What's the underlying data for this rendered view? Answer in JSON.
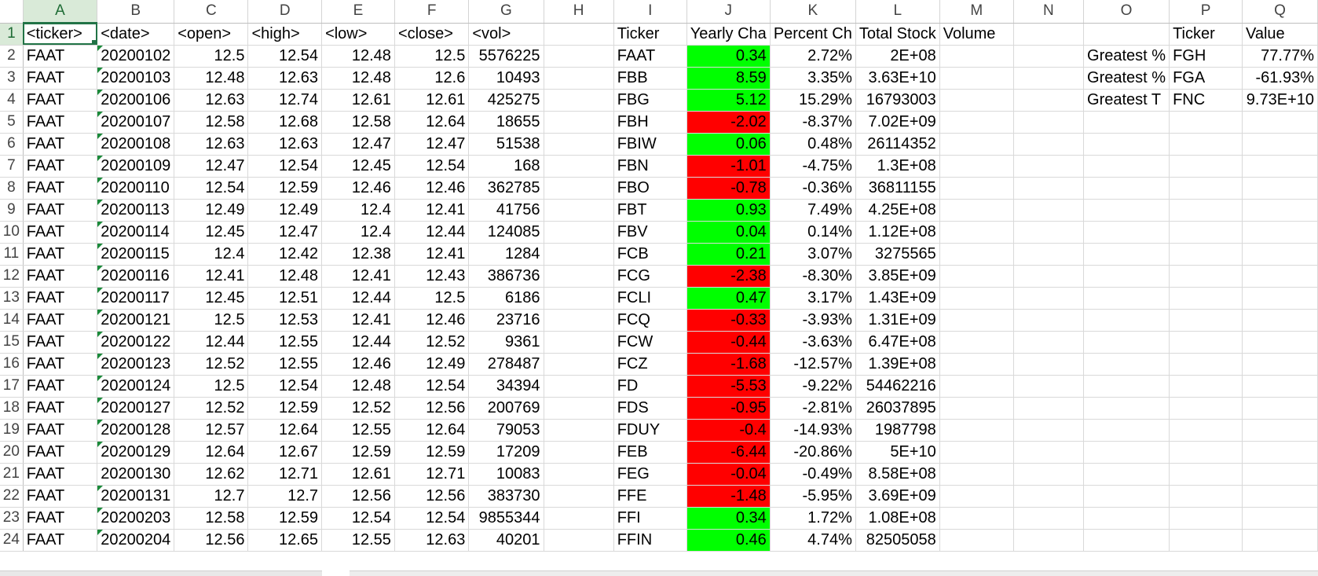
{
  "columns": [
    "A",
    "B",
    "C",
    "D",
    "E",
    "F",
    "G",
    "H",
    "I",
    "J",
    "K",
    "L",
    "M",
    "N",
    "O",
    "P",
    "Q"
  ],
  "selected_column": "A",
  "selected_row": "1",
  "header_row": {
    "A": "<ticker>",
    "B": "<date>",
    "C": "<open>",
    "D": "<high>",
    "E": "<low>",
    "F": "<close>",
    "G": "<vol>",
    "I": "Ticker",
    "J": "Yearly Cha",
    "K": "Percent Ch",
    "L": "Total Stock",
    "M": "Volume",
    "P": "Ticker",
    "Q": "Value"
  },
  "raw_data": [
    [
      "FAAT",
      "20200102",
      "12.5",
      "12.54",
      "12.48",
      "12.5",
      "5576225"
    ],
    [
      "FAAT",
      "20200103",
      "12.48",
      "12.63",
      "12.48",
      "12.6",
      "10493"
    ],
    [
      "FAAT",
      "20200106",
      "12.63",
      "12.74",
      "12.61",
      "12.61",
      "425275"
    ],
    [
      "FAAT",
      "20200107",
      "12.58",
      "12.68",
      "12.58",
      "12.64",
      "18655"
    ],
    [
      "FAAT",
      "20200108",
      "12.63",
      "12.63",
      "12.47",
      "12.47",
      "51538"
    ],
    [
      "FAAT",
      "20200109",
      "12.47",
      "12.54",
      "12.45",
      "12.54",
      "168"
    ],
    [
      "FAAT",
      "20200110",
      "12.54",
      "12.59",
      "12.46",
      "12.46",
      "362785"
    ],
    [
      "FAAT",
      "20200113",
      "12.49",
      "12.49",
      "12.4",
      "12.41",
      "41756"
    ],
    [
      "FAAT",
      "20200114",
      "12.45",
      "12.47",
      "12.4",
      "12.44",
      "124085"
    ],
    [
      "FAAT",
      "20200115",
      "12.4",
      "12.42",
      "12.38",
      "12.41",
      "1284"
    ],
    [
      "FAAT",
      "20200116",
      "12.41",
      "12.48",
      "12.41",
      "12.43",
      "386736"
    ],
    [
      "FAAT",
      "20200117",
      "12.45",
      "12.51",
      "12.44",
      "12.5",
      "6186"
    ],
    [
      "FAAT",
      "20200121",
      "12.5",
      "12.53",
      "12.41",
      "12.46",
      "23716"
    ],
    [
      "FAAT",
      "20200122",
      "12.44",
      "12.55",
      "12.44",
      "12.52",
      "9361"
    ],
    [
      "FAAT",
      "20200123",
      "12.52",
      "12.55",
      "12.46",
      "12.49",
      "278487"
    ],
    [
      "FAAT",
      "20200124",
      "12.5",
      "12.54",
      "12.48",
      "12.54",
      "34394"
    ],
    [
      "FAAT",
      "20200127",
      "12.52",
      "12.59",
      "12.52",
      "12.56",
      "200769"
    ],
    [
      "FAAT",
      "20200128",
      "12.57",
      "12.64",
      "12.55",
      "12.64",
      "79053"
    ],
    [
      "FAAT",
      "20200129",
      "12.64",
      "12.67",
      "12.59",
      "12.59",
      "17209"
    ],
    [
      "FAAT",
      "20200130",
      "12.62",
      "12.71",
      "12.61",
      "12.71",
      "10083"
    ],
    [
      "FAAT",
      "20200131",
      "12.7",
      "12.7",
      "12.56",
      "12.56",
      "383730"
    ],
    [
      "FAAT",
      "20200203",
      "12.58",
      "12.59",
      "12.54",
      "12.54",
      "9855344"
    ],
    [
      "FAAT",
      "20200204",
      "12.56",
      "12.65",
      "12.55",
      "12.63",
      "40201"
    ]
  ],
  "summary": [
    {
      "ticker": "FAAT",
      "change": "0.34",
      "percent": "2.72%",
      "volume": "2E+08",
      "color": "green"
    },
    {
      "ticker": "FBB",
      "change": "8.59",
      "percent": "3.35%",
      "volume": "3.63E+10",
      "color": "green"
    },
    {
      "ticker": "FBG",
      "change": "5.12",
      "percent": "15.29%",
      "volume": "16793003",
      "color": "green"
    },
    {
      "ticker": "FBH",
      "change": "-2.02",
      "percent": "-8.37%",
      "volume": "7.02E+09",
      "color": "red"
    },
    {
      "ticker": "FBIW",
      "change": "0.06",
      "percent": "0.48%",
      "volume": "26114352",
      "color": "green"
    },
    {
      "ticker": "FBN",
      "change": "-1.01",
      "percent": "-4.75%",
      "volume": "1.3E+08",
      "color": "red"
    },
    {
      "ticker": "FBO",
      "change": "-0.78",
      "percent": "-0.36%",
      "volume": "36811155",
      "color": "red"
    },
    {
      "ticker": "FBT",
      "change": "0.93",
      "percent": "7.49%",
      "volume": "4.25E+08",
      "color": "green"
    },
    {
      "ticker": "FBV",
      "change": "0.04",
      "percent": "0.14%",
      "volume": "1.12E+08",
      "color": "green"
    },
    {
      "ticker": "FCB",
      "change": "0.21",
      "percent": "3.07%",
      "volume": "3275565",
      "color": "green"
    },
    {
      "ticker": "FCG",
      "change": "-2.38",
      "percent": "-8.30%",
      "volume": "3.85E+09",
      "color": "red"
    },
    {
      "ticker": "FCLI",
      "change": "0.47",
      "percent": "3.17%",
      "volume": "1.43E+09",
      "color": "green"
    },
    {
      "ticker": "FCQ",
      "change": "-0.33",
      "percent": "-3.93%",
      "volume": "1.31E+09",
      "color": "red"
    },
    {
      "ticker": "FCW",
      "change": "-0.44",
      "percent": "-3.63%",
      "volume": "6.47E+08",
      "color": "red"
    },
    {
      "ticker": "FCZ",
      "change": "-1.68",
      "percent": "-12.57%",
      "volume": "1.39E+08",
      "color": "red"
    },
    {
      "ticker": "FD",
      "change": "-5.53",
      "percent": "-9.22%",
      "volume": "54462216",
      "color": "red"
    },
    {
      "ticker": "FDS",
      "change": "-0.95",
      "percent": "-2.81%",
      "volume": "26037895",
      "color": "red"
    },
    {
      "ticker": "FDUY",
      "change": "-0.4",
      "percent": "-14.93%",
      "volume": "1987798",
      "color": "red"
    },
    {
      "ticker": "FEB",
      "change": "-6.44",
      "percent": "-20.86%",
      "volume": "5E+10",
      "color": "red"
    },
    {
      "ticker": "FEG",
      "change": "-0.04",
      "percent": "-0.49%",
      "volume": "8.58E+08",
      "color": "red"
    },
    {
      "ticker": "FFE",
      "change": "-1.48",
      "percent": "-5.95%",
      "volume": "3.69E+09",
      "color": "red"
    },
    {
      "ticker": "FFI",
      "change": "0.34",
      "percent": "1.72%",
      "volume": "1.08E+08",
      "color": "green"
    },
    {
      "ticker": "FFIN",
      "change": "0.46",
      "percent": "4.74%",
      "volume": "82505058",
      "color": "green"
    }
  ],
  "greatest": [
    {
      "label": "Greatest %",
      "ticker": "FGH",
      "value": "77.77%"
    },
    {
      "label": "Greatest %",
      "ticker": "FGA",
      "value": "-61.93%"
    },
    {
      "label": "Greatest T",
      "ticker": "FNC",
      "value": "9.73E+10"
    }
  ],
  "colors": {
    "green": "#00ff00",
    "red": "#ff0000",
    "selection": "#217346"
  }
}
